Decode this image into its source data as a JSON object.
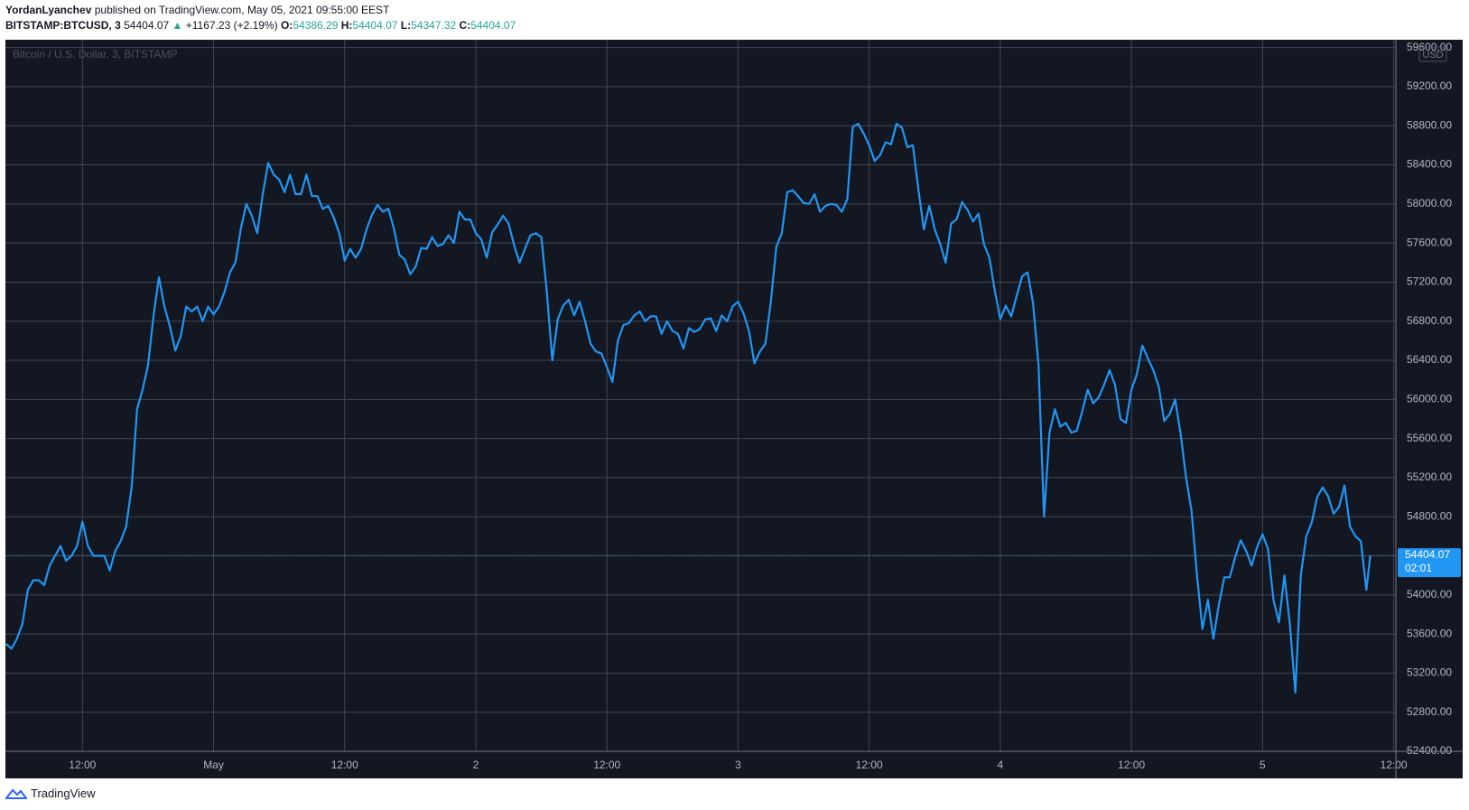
{
  "header": {
    "author": "YordanLyanchev",
    "published": "published on TradingView.com, May 05, 2021 09:55:00 EEST"
  },
  "legend": {
    "symbol": "BITSTAMP:BTCUSD, 3",
    "price": "54404.07",
    "arrow": "▲",
    "change": "+1167.23 (+2.19%)",
    "o_label": "O:",
    "o": "54386.29",
    "h_label": "H:",
    "h": "54404.07",
    "l_label": "L:",
    "l": "54347.32",
    "c_label": "C:",
    "c": "54404.07"
  },
  "footer": "TradingView",
  "chart_data": {
    "type": "line",
    "watermark": "Bitcoin / U.S. Dollar, 3, BITSTAMP",
    "currency": "USD",
    "color": "#2196f3",
    "grid": true,
    "last_price": 54404.07,
    "countdown": "02:01",
    "xlim": [
      4.95,
      132.2
    ],
    "ylim": [
      52400,
      59680
    ],
    "xticks": [
      {
        "value": 12,
        "label": "12:00"
      },
      {
        "value": 24,
        "label": "May"
      },
      {
        "value": 36,
        "label": "12:00"
      },
      {
        "value": 48,
        "label": "2"
      },
      {
        "value": 60,
        "label": "12:00"
      },
      {
        "value": 72,
        "label": "3"
      },
      {
        "value": 84,
        "label": "12:00"
      },
      {
        "value": 96,
        "label": "4"
      },
      {
        "value": 108,
        "label": "12:00"
      },
      {
        "value": 120,
        "label": "5"
      },
      {
        "value": 132,
        "label": "12:00"
      }
    ],
    "yticks": [
      {
        "value": 52400,
        "label": "52400.00"
      },
      {
        "value": 52800,
        "label": "52800.00"
      },
      {
        "value": 53200,
        "label": "53200.00"
      },
      {
        "value": 53600,
        "label": "53600.00"
      },
      {
        "value": 54000,
        "label": "54000.00"
      },
      {
        "value": 54400,
        "label": "54400.00"
      },
      {
        "value": 54800,
        "label": "54800.00"
      },
      {
        "value": 55200,
        "label": "55200.00"
      },
      {
        "value": 55600,
        "label": "55600.00"
      },
      {
        "value": 56000,
        "label": "56000.00"
      },
      {
        "value": 56400,
        "label": "56400.00"
      },
      {
        "value": 56800,
        "label": "56800.00"
      },
      {
        "value": 57200,
        "label": "57200.00"
      },
      {
        "value": 57600,
        "label": "57600.00"
      },
      {
        "value": 58000,
        "label": "58000.00"
      },
      {
        "value": 58400,
        "label": "58400.00"
      },
      {
        "value": 58800,
        "label": "58800.00"
      },
      {
        "value": 59200,
        "label": "59200.00"
      },
      {
        "value": 59600,
        "label": "59600.00"
      }
    ],
    "x": [
      5,
      5.5,
      6,
      6.5,
      7,
      7.5,
      8,
      8.5,
      9,
      9.5,
      10,
      10.5,
      11,
      11.5,
      12,
      12.5,
      13,
      13.5,
      14,
      14.5,
      15,
      15.5,
      16,
      16.5,
      17,
      17.5,
      18,
      18.5,
      19,
      19.5,
      20,
      20.5,
      21,
      21.5,
      22,
      22.5,
      23,
      23.5,
      24,
      24.5,
      25,
      25.5,
      26,
      26.5,
      27,
      27.5,
      28,
      28.5,
      29,
      29.5,
      30,
      30.5,
      31,
      31.5,
      32,
      32.5,
      33,
      33.5,
      34,
      34.5,
      35,
      35.5,
      36,
      36.5,
      37,
      37.5,
      38,
      38.5,
      39,
      39.5,
      40,
      40.5,
      41,
      41.5,
      42,
      42.5,
      43,
      43.5,
      44,
      44.5,
      45,
      45.5,
      46,
      46.5,
      47,
      47.5,
      48,
      48.5,
      49,
      49.5,
      50,
      50.5,
      51,
      51.5,
      52,
      52.5,
      53,
      53.5,
      54,
      54.5,
      55,
      55.5,
      56,
      56.5,
      57,
      57.5,
      58,
      58.5,
      59,
      59.5,
      60,
      60.5,
      61,
      61.5,
      62,
      62.5,
      63,
      63.5,
      64,
      64.5,
      65,
      65.5,
      66,
      66.5,
      67,
      67.5,
      68,
      68.5,
      69,
      69.5,
      70,
      70.5,
      71,
      71.5,
      72,
      72.5,
      73,
      73.5,
      74,
      74.5,
      75,
      75.5,
      76,
      76.5,
      77,
      77.5,
      78,
      78.5,
      79,
      79.5,
      80,
      80.5,
      81,
      81.5,
      82,
      82.5,
      83,
      83.5,
      84,
      84.5,
      85,
      85.5,
      86,
      86.5,
      87,
      87.5,
      88,
      88.5,
      89,
      89.5,
      90,
      90.5,
      91,
      91.5,
      92,
      92.5,
      93,
      93.5,
      94,
      94.5,
      95,
      95.5,
      96,
      96.5,
      97,
      97.5,
      98,
      98.5,
      99,
      99.5,
      100,
      100.5,
      101,
      101.5,
      102,
      102.5,
      103,
      103.5,
      104,
      104.5,
      105,
      105.5,
      106,
      106.5,
      107,
      107.5,
      108,
      108.5,
      109,
      109.5,
      110,
      110.5,
      111,
      111.5,
      112,
      112.5,
      113,
      113.5,
      114,
      114.5,
      115,
      115.5,
      116,
      116.5,
      117,
      117.5,
      118,
      118.5,
      119,
      119.5,
      120,
      120.5,
      121,
      121.5,
      122,
      122.5,
      123,
      123.5,
      124,
      124.5,
      125,
      125.5,
      126,
      126.5,
      127,
      127.5,
      128,
      128.5,
      129,
      129.5,
      129.86
    ],
    "values": [
      53500,
      53450,
      53550,
      53700,
      54050,
      54150,
      54150,
      54100,
      54300,
      54400,
      54500,
      54350,
      54400,
      54500,
      54750,
      54500,
      54400,
      54400,
      54400,
      54250,
      54450,
      54550,
      54700,
      55100,
      55900,
      56100,
      56350,
      56850,
      57250,
      56950,
      56750,
      56500,
      56650,
      56950,
      56900,
      56950,
      56800,
      56950,
      56870,
      56950,
      57100,
      57300,
      57400,
      57750,
      58000,
      57880,
      57700,
      58100,
      58420,
      58300,
      58250,
      58120,
      58300,
      58100,
      58100,
      58300,
      58080,
      58080,
      57950,
      57980,
      57860,
      57700,
      57420,
      57540,
      57450,
      57540,
      57740,
      57890,
      57990,
      57920,
      57950,
      57750,
      57480,
      57430,
      57280,
      57360,
      57550,
      57540,
      57660,
      57570,
      57590,
      57680,
      57600,
      57920,
      57840,
      57840,
      57700,
      57640,
      57450,
      57710,
      57790,
      57880,
      57800,
      57580,
      57400,
      57540,
      57680,
      57700,
      57660,
      57100,
      56400,
      56820,
      56960,
      57020,
      56860,
      57000,
      56800,
      56570,
      56490,
      56470,
      56330,
      56180,
      56600,
      56760,
      56780,
      56860,
      56900,
      56800,
      56850,
      56850,
      56670,
      56800,
      56700,
      56670,
      56520,
      56730,
      56690,
      56720,
      56820,
      56830,
      56700,
      56860,
      56800,
      56950,
      57000,
      56880,
      56700,
      56370,
      56490,
      56570,
      57000,
      57560,
      57700,
      58120,
      58140,
      58080,
      58010,
      58000,
      58100,
      57920,
      57980,
      58000,
      57990,
      57920,
      58050,
      58790,
      58820,
      58720,
      58600,
      58440,
      58500,
      58630,
      58610,
      58820,
      58780,
      58580,
      58600,
      58150,
      57740,
      57980,
      57740,
      57590,
      57400,
      57800,
      57840,
      58020,
      57940,
      57820,
      57900,
      57590,
      57450,
      57110,
      56820,
      56960,
      56850,
      57060,
      57260,
      57300,
      56980,
      56350,
      54800,
      55660,
      55900,
      55720,
      55760,
      55660,
      55680,
      55880,
      56100,
      55960,
      56020,
      56150,
      56300,
      56150,
      55800,
      55760,
      56100,
      56260,
      56550,
      56420,
      56300,
      56130,
      55780,
      55850,
      56000,
      55650,
      55200,
      54860,
      54200,
      53650,
      53950,
      53550,
      53900,
      54180,
      54180,
      54390,
      54560,
      54450,
      54300,
      54490,
      54620,
      54470,
      53950,
      53720,
      54200,
      53700,
      53000,
      54200,
      54600,
      54740,
      55000,
      55100,
      55010,
      54830,
      54900,
      55120,
      54700,
      54600,
      54550,
      54050,
      54404.07
    ]
  }
}
